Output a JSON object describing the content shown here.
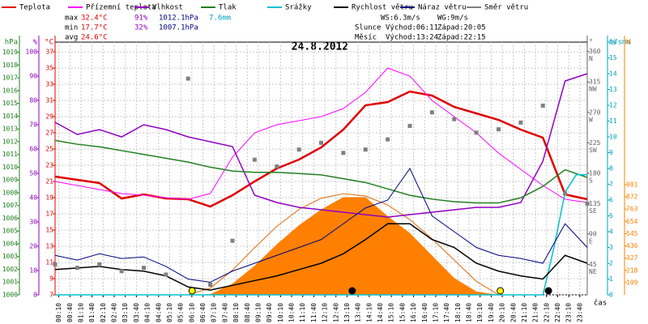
{
  "chart_data": {
    "type": "line",
    "title": "24.8.2012",
    "x_label": "čas",
    "grid": true,
    "xlim": [
      0,
      24
    ],
    "xticks": [
      {
        "value": 0.1667,
        "label": "00:10"
      },
      {
        "value": 0.6667,
        "label": "00:40"
      },
      {
        "value": 1.1667,
        "label": "01:10"
      },
      {
        "value": 1.6667,
        "label": "01:40"
      },
      {
        "value": 2.1667,
        "label": "02:10"
      },
      {
        "value": 2.6667,
        "label": "02:40"
      },
      {
        "value": 3.1667,
        "label": "03:10"
      },
      {
        "value": 3.6667,
        "label": "03:40"
      },
      {
        "value": 4.1667,
        "label": "04:10"
      },
      {
        "value": 4.6667,
        "label": "04:40"
      },
      {
        "value": 5.1667,
        "label": "05:10"
      },
      {
        "value": 5.6667,
        "label": "05:40"
      },
      {
        "value": 6.1667,
        "label": "06:10"
      },
      {
        "value": 6.6667,
        "label": "06:40"
      },
      {
        "value": 7.1667,
        "label": "07:10"
      },
      {
        "value": 7.6667,
        "label": "07:40"
      },
      {
        "value": 8.1667,
        "label": "08:10"
      },
      {
        "value": 8.6667,
        "label": "08:40"
      },
      {
        "value": 9.1667,
        "label": "09:10"
      },
      {
        "value": 9.6667,
        "label": "09:40"
      },
      {
        "value": 10.1667,
        "label": "10:10"
      },
      {
        "value": 10.6667,
        "label": "10:40"
      },
      {
        "value": 11.1667,
        "label": "11:10"
      },
      {
        "value": 11.6667,
        "label": "11:40"
      },
      {
        "value": 12.1667,
        "label": "12:10"
      },
      {
        "value": 12.6667,
        "label": "12:40"
      },
      {
        "value": 13.1667,
        "label": "13:10"
      },
      {
        "value": 13.6667,
        "label": "13:40"
      },
      {
        "value": 14.1667,
        "label": "14:10"
      },
      {
        "value": 14.6667,
        "label": "14:40"
      },
      {
        "value": 15.1667,
        "label": "15:10"
      },
      {
        "value": 15.6667,
        "label": "15:40"
      },
      {
        "value": 16.1667,
        "label": "16:10"
      },
      {
        "value": 16.6667,
        "label": "16:40"
      },
      {
        "value": 17.1667,
        "label": "17:10"
      },
      {
        "value": 17.6667,
        "label": "17:40"
      },
      {
        "value": 18.1667,
        "label": "18:10"
      },
      {
        "value": 18.6667,
        "label": "18:40"
      },
      {
        "value": 19.1667,
        "label": "19:10"
      },
      {
        "value": 19.6667,
        "label": "19:40"
      },
      {
        "value": 20.1667,
        "label": "20:10"
      },
      {
        "value": 20.6667,
        "label": "20:40"
      },
      {
        "value": 21.1667,
        "label": "21:10"
      },
      {
        "value": 21.6667,
        "label": "21:40"
      },
      {
        "value": 22.1667,
        "label": "22:10"
      },
      {
        "value": 22.6667,
        "label": "22:40"
      },
      {
        "value": 23.1667,
        "label": "23:10"
      },
      {
        "value": 23.6667,
        "label": "23:40"
      }
    ],
    "axes": {
      "hpa": {
        "unit": "hPa",
        "color": "#208020",
        "lim": [
          1000,
          1019.8
        ],
        "ticks": [
          1000,
          1001,
          1002,
          1003,
          1004,
          1005,
          1006,
          1007,
          1008,
          1009,
          1010,
          1011,
          1012,
          1013,
          1014,
          1015,
          1016,
          1017,
          1018,
          1019
        ]
      },
      "pct": {
        "unit": "%",
        "color": "#9000c0",
        "lim": [
          0,
          104
        ],
        "ticks": [
          0,
          10,
          20,
          30,
          40,
          50,
          60,
          70,
          80,
          90,
          100
        ]
      },
      "temp": {
        "unit": "°C",
        "color": "#e00000",
        "lim": [
          7,
          38.2
        ],
        "ticks": [
          7,
          9,
          11,
          13,
          15,
          17,
          19,
          21,
          23,
          25,
          27,
          29,
          31,
          33,
          35,
          37
        ]
      },
      "deg": {
        "unit": "°",
        "color": "#606060",
        "lim": [
          0,
          374
        ],
        "ticks": [
          45,
          90,
          135,
          180,
          225,
          270,
          315,
          360
        ],
        "compass": [
          "NE",
          "E",
          "SE",
          "S",
          "SW",
          "W",
          "NW",
          "N"
        ]
      },
      "ms": {
        "unit": "m/s",
        "unit2": "mm",
        "color": "#00a0c0",
        "lim": [
          0,
          16
        ],
        "ticks": [
          0,
          1,
          2,
          3,
          4,
          5,
          6,
          7,
          8,
          9,
          10,
          11,
          12,
          13,
          14,
          15,
          16
        ]
      },
      "w": {
        "unit": "W",
        "color": "#ff8000",
        "lim": [
          0,
          2250
        ],
        "ticks": [
          109,
          218,
          327,
          436,
          545,
          654,
          763,
          872,
          981
        ]
      }
    },
    "x": [
      0,
      1,
      2,
      3,
      4,
      5,
      6,
      7,
      8,
      9,
      10,
      11,
      12,
      13,
      14,
      15,
      16,
      17,
      18,
      19,
      20,
      21,
      22,
      23,
      24
    ],
    "solar": {
      "color": "#ff8000",
      "axis": "w",
      "x": [
        6,
        7,
        8,
        9,
        10,
        11,
        12,
        13,
        14,
        15,
        16,
        17,
        18,
        19,
        20
      ],
      "values": [
        0,
        5,
        100,
        260,
        450,
        620,
        760,
        870,
        870,
        700,
        550,
        350,
        150,
        30,
        0
      ]
    },
    "solar_theory": {
      "color": "#e08030",
      "axis": "w",
      "x": [
        6,
        7,
        8,
        9,
        10,
        11,
        12,
        13,
        14,
        15,
        16,
        17,
        18,
        19,
        20
      ],
      "values": [
        0,
        60,
        220,
        420,
        610,
        760,
        860,
        900,
        880,
        800,
        670,
        500,
        310,
        120,
        0
      ]
    },
    "series": [
      {
        "name": "Teplota",
        "color": "#e00000",
        "axis": "temp",
        "width": 2.5,
        "values": [
          21.6,
          21.2,
          20.8,
          18.9,
          19.4,
          18.9,
          18.8,
          17.9,
          19.3,
          21,
          22.6,
          23.7,
          25.2,
          27.4,
          30.4,
          30.8,
          32.1,
          31.6,
          30.2,
          29.4,
          28.6,
          27.4,
          26.4,
          19.4,
          18.8
        ]
      },
      {
        "name": "Přízemní teplota",
        "color": "#ff00ff",
        "axis": "temp",
        "width": 1,
        "values": [
          21,
          20.5,
          20,
          19.5,
          19.3,
          19,
          18.8,
          19.5,
          24,
          27,
          28,
          28.5,
          29,
          30,
          32,
          35,
          34,
          31,
          29,
          27,
          24.5,
          22.5,
          20.5,
          18.8,
          18.4
        ]
      },
      {
        "name": "Vlhkost",
        "color": "#9000c0",
        "axis": "pct",
        "width": 1.5,
        "values": [
          71,
          66,
          68,
          65,
          70,
          68,
          65,
          63,
          61,
          41,
          38,
          36,
          35,
          34,
          33,
          32,
          33,
          34,
          35,
          36,
          36,
          38,
          55,
          88,
          91
        ]
      },
      {
        "name": "Tlak",
        "color": "#208020",
        "axis": "hpa",
        "width": 1.5,
        "values": [
          1012.1,
          1011.8,
          1011.6,
          1011.3,
          1011,
          1010.7,
          1010.4,
          1010,
          1009.7,
          1009.6,
          1009.6,
          1009.5,
          1009.4,
          1009.1,
          1008.8,
          1008.3,
          1007.8,
          1007.5,
          1007.3,
          1007.2,
          1007.2,
          1007.6,
          1008.5,
          1009.8,
          1009.2
        ]
      },
      {
        "name": "Srážky",
        "color": "#00c0d0",
        "axis": "ms",
        "width": 1.5,
        "x": [
          0,
          22,
          22.5,
          23,
          23.5,
          24
        ],
        "values": [
          0,
          0,
          3,
          6.5,
          7.6,
          7.6
        ]
      },
      {
        "name": "Rychlost větru",
        "color": "#000000",
        "axis": "ms",
        "width": 1.5,
        "values": [
          1.6,
          1.7,
          1.8,
          1.6,
          1.5,
          1.2,
          0.5,
          0.3,
          0.6,
          0.9,
          1.2,
          1.6,
          2,
          2.6,
          3.5,
          4.5,
          4.5,
          3.5,
          3,
          2,
          1.5,
          1.2,
          1,
          2.5,
          2
        ]
      },
      {
        "name": "Náraz větru",
        "color": "#000080",
        "axis": "ms",
        "width": 1,
        "values": [
          2.5,
          2.2,
          2.6,
          2.3,
          2.4,
          1.8,
          1,
          0.8,
          1.5,
          2,
          2.5,
          3,
          3.5,
          4.5,
          5.5,
          6,
          8,
          5,
          4,
          3,
          2.5,
          2.3,
          2,
          4.5,
          3
        ]
      },
      {
        "name": "Směr větru",
        "color": "#808080",
        "axis": "deg",
        "style": "points",
        "values": [
          45,
          40,
          45,
          35,
          40,
          30,
          320,
          15,
          80,
          200,
          190,
          215,
          225,
          210,
          215,
          230,
          250,
          270,
          260,
          240,
          245,
          255,
          280,
          150,
          135
        ]
      }
    ],
    "markers": [
      {
        "x": 6.18,
        "color": "#ffff00"
      },
      {
        "x": 13.4,
        "color": "#000000"
      },
      {
        "x": 20.08,
        "color": "#ffff00"
      },
      {
        "x": 22.25,
        "color": "#000000"
      }
    ],
    "stats": [
      [
        "max",
        "32.4°C",
        "91%",
        "1012.1hPa",
        "7.6mm"
      ],
      [
        "min",
        "17.7°C",
        "32%",
        "1007.1hPa"
      ],
      [
        "avg",
        "24.6°C"
      ]
    ],
    "wind_info": [
      "WS:6.3m/s",
      "WG:9m/s"
    ],
    "sun": [
      "Slunce",
      "Východ:06:11",
      "Západ:20:05"
    ],
    "moon": [
      "Měsíc",
      "Východ:13:24",
      "Západ:22:15"
    ]
  }
}
